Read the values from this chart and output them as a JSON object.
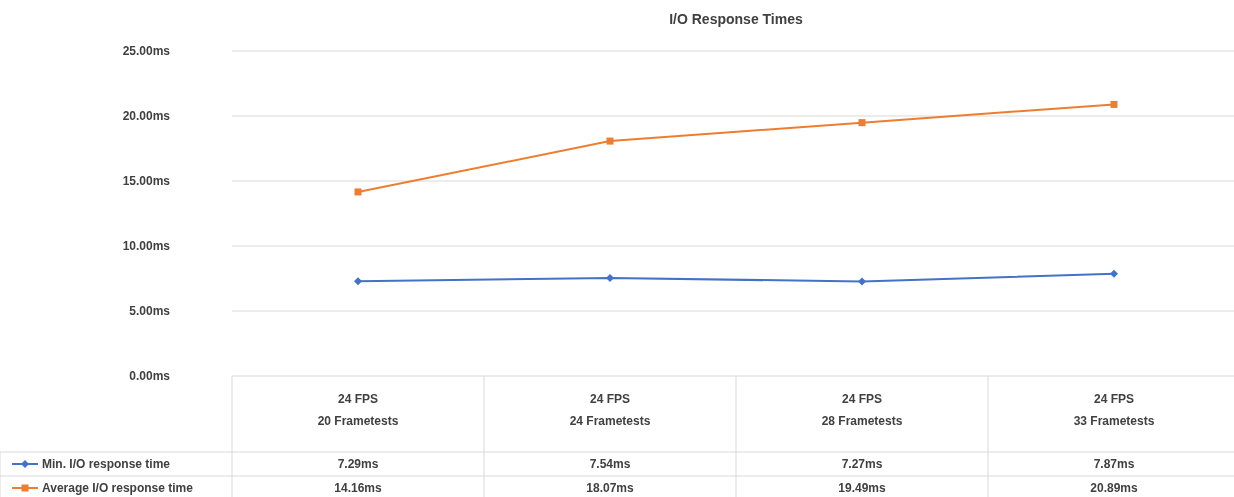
{
  "chart_data": {
    "type": "line",
    "title": "I/O Response Times",
    "categories": [
      "24 FPS\n20 Frametests",
      "24 FPS\n24 Frametests",
      "24 FPS\n28 Frametests",
      "24 FPS\n33 Frametests"
    ],
    "series": [
      {
        "name": "Min. I/O response time",
        "color": "#4472c4",
        "marker": "diamond",
        "values": [
          7.29,
          7.54,
          7.27,
          7.87
        ],
        "value_labels": [
          "7.29ms",
          "7.54ms",
          "7.27ms",
          "7.87ms"
        ]
      },
      {
        "name": "Average I/O response time",
        "color": "#ed7d31",
        "marker": "square",
        "values": [
          14.16,
          18.07,
          19.49,
          20.89
        ],
        "value_labels": [
          "14.16ms",
          "18.07ms",
          "19.49ms",
          "20.89ms"
        ]
      }
    ],
    "ylim": [
      0,
      25
    ],
    "yticks": [
      {
        "value": 0,
        "label": "0.00ms"
      },
      {
        "value": 5,
        "label": "5.00ms"
      },
      {
        "value": 10,
        "label": "10.00ms"
      },
      {
        "value": 15,
        "label": "15.00ms"
      },
      {
        "value": 20,
        "label": "20.00ms"
      },
      {
        "value": 25,
        "label": "25.00ms"
      }
    ],
    "grid": "y",
    "legend": "bottom"
  }
}
